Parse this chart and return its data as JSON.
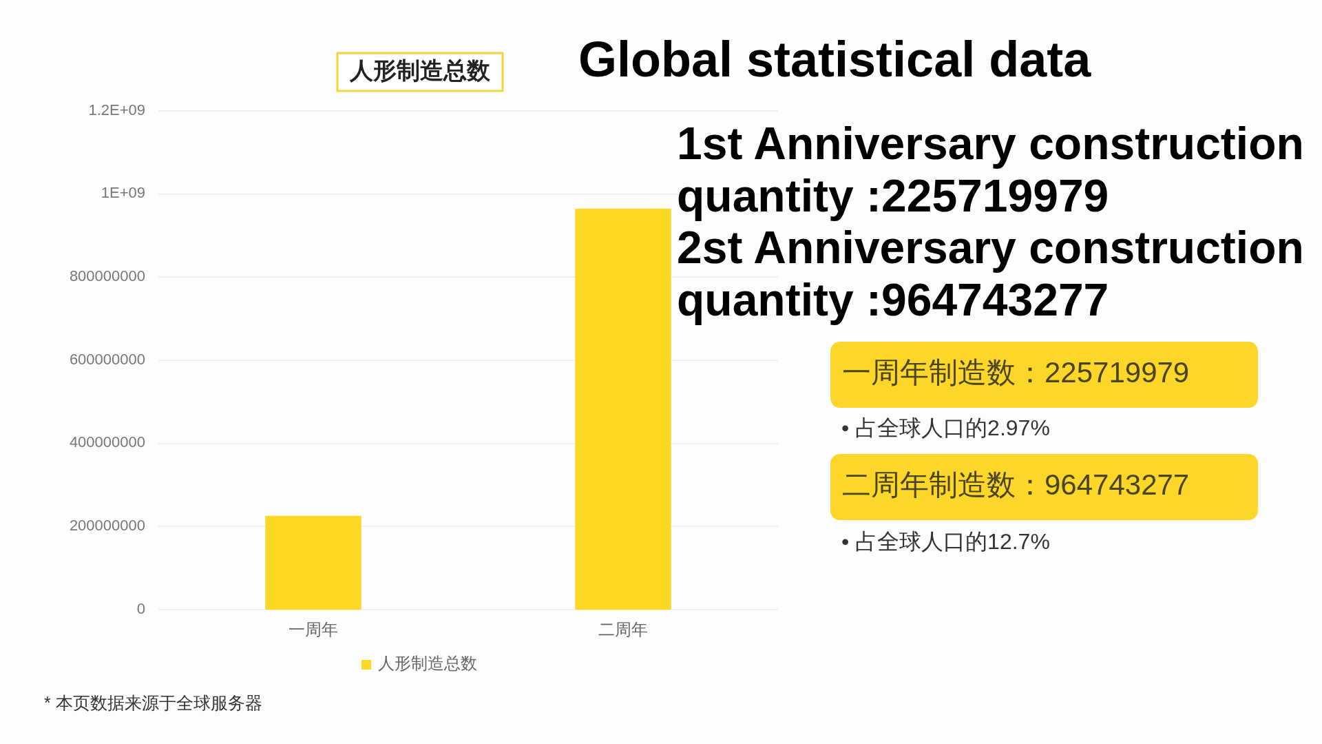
{
  "chart_data": {
    "type": "bar",
    "title": "人形制造总数",
    "categories": [
      "一周年",
      "二周年"
    ],
    "series": [
      {
        "name": "人形制造总数",
        "color": "#fcd823",
        "values": [
          225719979,
          964743277
        ]
      }
    ],
    "ylim": [
      0,
      1200000000
    ],
    "yticks": [
      0,
      200000000,
      400000000,
      600000000,
      800000000,
      {
        "value": 1000000000,
        "label": "1E+09"
      },
      {
        "value": 1200000000,
        "label": "1.2E+09"
      }
    ],
    "grid": "y",
    "legend": "bottom",
    "annotations": [
      "Global statistical data",
      "1st Anniversary construction",
      "quantity :225719979",
      "2st Anniversary construction",
      "quantity :964743277",
      "一周年制造数：225719979",
      "• 占全球人口的2.97%",
      "二周年制造数：964743277",
      "• 占全球人口的12.7%",
      "* 本页数据来源于全球服务器"
    ]
  }
}
